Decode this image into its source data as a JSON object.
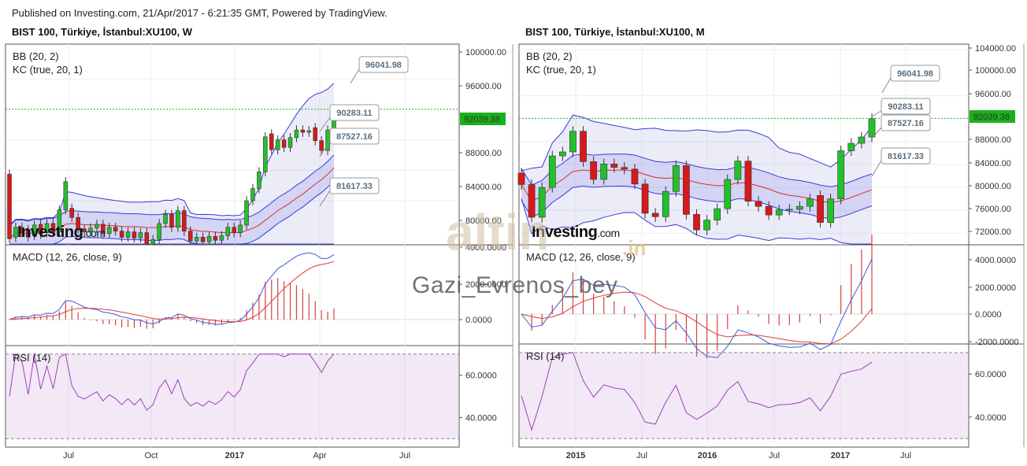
{
  "header": {
    "published": "Published on Investing.com, 21/Apr/2017 - 6:21:35 GMT, Powered by TradingView."
  },
  "brand": {
    "logo_text": "Investing",
    "logo_suffix": ".com"
  },
  "watermark": {
    "username": "Gazi_Evrenos_bey",
    "big": "altin",
    "suffix": ".in"
  },
  "colors": {
    "up": "#22c02a",
    "down": "#d8191b",
    "bb": "#3a3ad8",
    "kc_mid": "#d83030",
    "macd": "#3a5ad8",
    "signal": "#e03a3a",
    "hist": "#d84040",
    "rsi": "#a040c0",
    "current": "#1ab01a"
  },
  "chart_data": [
    {
      "type": "candlestick",
      "title": "BIST 100, Türkiye, İstanbul:XU100, W",
      "price_panel": {
        "indicators": [
          "BB (20, 2)",
          "KC (true, 20, 1)"
        ],
        "y_ticks": [
          "100000.00",
          "96000.00",
          "92039.38",
          "88000.00",
          "84000.00",
          "80000.00",
          "4000.0000"
        ],
        "current_price": "92039.38",
        "callouts": [
          "96041.98",
          "90283.11",
          "87527.16",
          "81617.33"
        ],
        "candles": [
          {
            "o": 83500,
            "c": 75000
          },
          {
            "o": 75200,
            "c": 76500
          },
          {
            "o": 76500,
            "c": 75800
          },
          {
            "o": 76200,
            "c": 75200
          },
          {
            "o": 75400,
            "c": 76800
          },
          {
            "o": 76900,
            "c": 75600
          },
          {
            "o": 75800,
            "c": 77000
          },
          {
            "o": 77000,
            "c": 75900
          },
          {
            "o": 75900,
            "c": 78800
          },
          {
            "o": 78800,
            "c": 82500
          },
          {
            "o": 79000,
            "c": 77800
          },
          {
            "o": 77800,
            "c": 76300
          },
          {
            "o": 76300,
            "c": 75900
          },
          {
            "o": 75900,
            "c": 76400
          },
          {
            "o": 76400,
            "c": 76900
          },
          {
            "o": 76900,
            "c": 75700
          },
          {
            "o": 75700,
            "c": 76500
          },
          {
            "o": 76500,
            "c": 76000
          },
          {
            "o": 76000,
            "c": 75200
          },
          {
            "o": 75200,
            "c": 75900
          },
          {
            "o": 75900,
            "c": 75100
          },
          {
            "o": 75100,
            "c": 75800
          },
          {
            "o": 75800,
            "c": 74300
          },
          {
            "o": 74300,
            "c": 74900
          },
          {
            "o": 74900,
            "c": 77000
          },
          {
            "o": 77000,
            "c": 78200
          },
          {
            "o": 78200,
            "c": 76500
          },
          {
            "o": 76500,
            "c": 78700
          },
          {
            "o": 78700,
            "c": 76000
          },
          {
            "o": 76000,
            "c": 74700
          },
          {
            "o": 74700,
            "c": 75200
          },
          {
            "o": 75200,
            "c": 74600
          },
          {
            "o": 74600,
            "c": 75300
          },
          {
            "o": 75300,
            "c": 74800
          },
          {
            "o": 74800,
            "c": 75400
          },
          {
            "o": 75400,
            "c": 76500
          },
          {
            "o": 76500,
            "c": 75800
          },
          {
            "o": 75800,
            "c": 76800
          },
          {
            "o": 76800,
            "c": 80000
          },
          {
            "o": 80000,
            "c": 81600
          },
          {
            "o": 81600,
            "c": 83800
          },
          {
            "o": 83800,
            "c": 88400
          },
          {
            "o": 88800,
            "c": 86700
          },
          {
            "o": 86700,
            "c": 88000
          },
          {
            "o": 88000,
            "c": 87000
          },
          {
            "o": 87000,
            "c": 88300
          },
          {
            "o": 88300,
            "c": 89300
          },
          {
            "o": 89300,
            "c": 89000
          },
          {
            "o": 89000,
            "c": 89200
          },
          {
            "o": 89600,
            "c": 87900
          },
          {
            "o": 87900,
            "c": 86600
          },
          {
            "o": 86600,
            "c": 89300
          },
          {
            "o": 89300,
            "c": 92100
          }
        ]
      },
      "macd_panel": {
        "label": "MACD (12, 26, close, 9)",
        "y_ticks": [
          "2000.0000",
          "0.0000"
        ]
      },
      "rsi_panel": {
        "label": "RSI (14)",
        "y_ticks": [
          "60.0000",
          "40.0000"
        ]
      },
      "x_ticks": [
        "Jul",
        "Oct",
        "2017",
        "Apr",
        "Jul"
      ]
    },
    {
      "type": "candlestick",
      "title": "BIST 100, Türkiye, İstanbul:XU100, M",
      "price_panel": {
        "indicators": [
          "BB (20, 2)",
          "KC (true, 20, 1)"
        ],
        "y_ticks": [
          "104000.00",
          "100000.00",
          "96000.00",
          "92039.38",
          "88000.00",
          "84000.00",
          "80000.00",
          "76000.00",
          "72000.00"
        ],
        "current_price": "92039.38",
        "callouts": [
          "96041.98",
          "90283.11",
          "87527.16",
          "81617.33"
        ],
        "candles": [
          {
            "o": 82500,
            "c": 80500
          },
          {
            "o": 80500,
            "c": 74800
          },
          {
            "o": 74800,
            "c": 80000
          },
          {
            "o": 80000,
            "c": 85500
          },
          {
            "o": 85500,
            "c": 86200
          },
          {
            "o": 86200,
            "c": 89800
          },
          {
            "o": 89800,
            "c": 84500
          },
          {
            "o": 84500,
            "c": 81400
          },
          {
            "o": 81400,
            "c": 84100
          },
          {
            "o": 84100,
            "c": 83500
          },
          {
            "o": 83500,
            "c": 83200
          },
          {
            "o": 83200,
            "c": 80600
          },
          {
            "o": 80600,
            "c": 75500
          },
          {
            "o": 75500,
            "c": 74900
          },
          {
            "o": 74900,
            "c": 79300
          },
          {
            "o": 79300,
            "c": 83800
          },
          {
            "o": 83800,
            "c": 75300
          },
          {
            "o": 75300,
            "c": 72600
          },
          {
            "o": 72600,
            "c": 74300
          },
          {
            "o": 74300,
            "c": 76300
          },
          {
            "o": 76300,
            "c": 81400
          },
          {
            "o": 81400,
            "c": 84600
          },
          {
            "o": 84600,
            "c": 77600
          },
          {
            "o": 77600,
            "c": 76700
          },
          {
            "o": 76700,
            "c": 75200
          },
          {
            "o": 75200,
            "c": 76100
          },
          {
            "o": 76100,
            "c": 76200
          },
          {
            "o": 76200,
            "c": 76700
          },
          {
            "o": 76700,
            "c": 78000
          },
          {
            "o": 78600,
            "c": 73900
          },
          {
            "o": 73900,
            "c": 78000
          },
          {
            "o": 78000,
            "c": 86400
          },
          {
            "o": 86400,
            "c": 87700
          },
          {
            "o": 87700,
            "c": 88800
          },
          {
            "o": 88800,
            "c": 92000
          }
        ]
      },
      "macd_panel": {
        "label": "MACD (12, 26, close, 9)",
        "y_ticks": [
          "4000.0000",
          "2000.0000",
          "0.0000",
          "-2000.0000"
        ]
      },
      "rsi_panel": {
        "label": "RSI (14)",
        "y_ticks": [
          "60.0000",
          "40.0000"
        ]
      },
      "x_ticks": [
        "2015",
        "Jul",
        "2016",
        "Jul",
        "2017",
        "Jul"
      ]
    }
  ]
}
